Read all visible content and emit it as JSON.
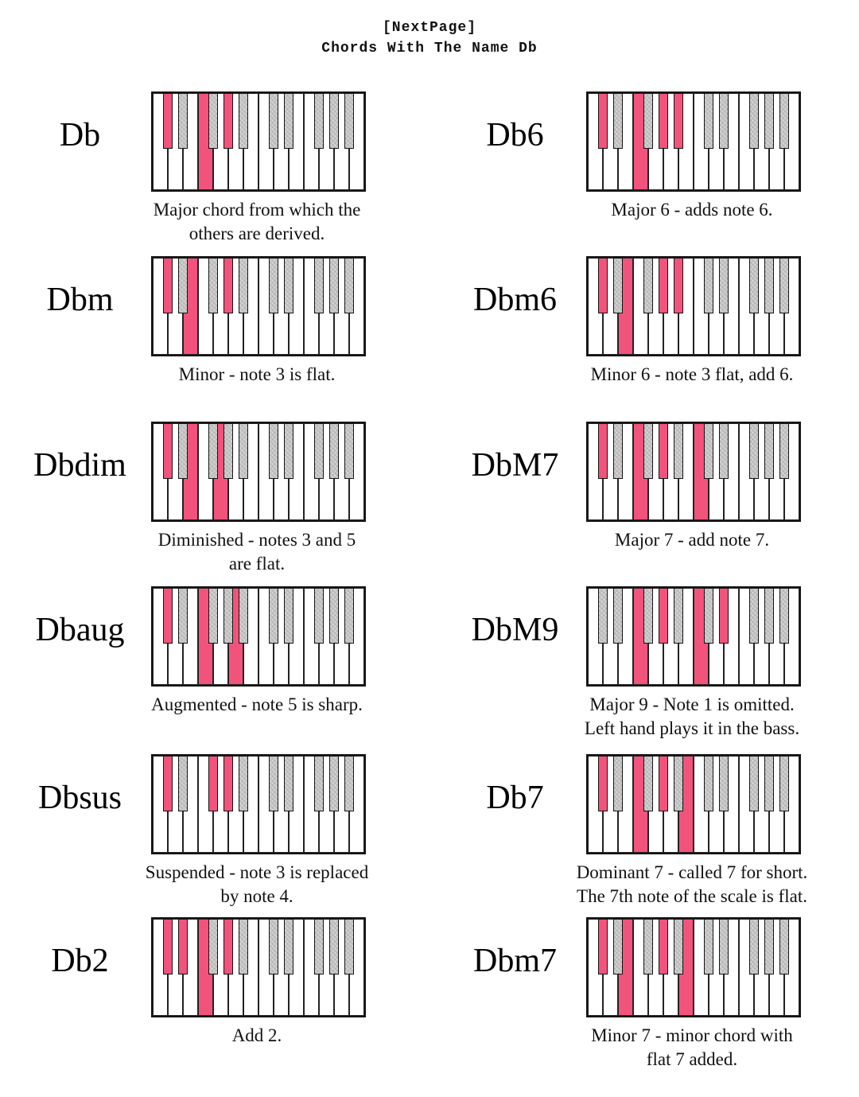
{
  "title": {
    "text": "[NextPage]\nChords With The Name Db"
  },
  "colors": {
    "highlight_pink": "#f2537b",
    "black_key_gray": "#c8c8c8",
    "key_outline": "#141414"
  },
  "keyboard_layout": {
    "white_notes": [
      "C1",
      "D1",
      "E1",
      "F1",
      "G1",
      "A1",
      "B1",
      "C2",
      "D2",
      "E2",
      "F2",
      "G2",
      "A2",
      "B2"
    ],
    "black_notes": [
      "Db1",
      "Eb1",
      "Gb1",
      "Ab1",
      "Bb1",
      "Db2",
      "Eb2",
      "Gb2",
      "Ab2",
      "Bb2"
    ],
    "black_positions": [
      1,
      2,
      4,
      5,
      6,
      8,
      9,
      11,
      12,
      13
    ],
    "white_key_width": 19,
    "black_key_width": 12
  },
  "chords": [
    {
      "name": "Db",
      "caption": "Major chord from which the\nothers are derived.",
      "notes": [
        "Db",
        "F",
        "Ab"
      ],
      "white_keys": [
        3
      ],
      "black_keys": [
        0,
        3
      ]
    },
    {
      "name": "Db6",
      "caption": "Major 6 - adds note 6.",
      "notes": [
        "Db",
        "F",
        "Ab",
        "Bb"
      ],
      "white_keys": [
        3
      ],
      "black_keys": [
        0,
        3,
        4
      ]
    },
    {
      "name": "Dbm",
      "caption": "Minor - note 3 is flat.",
      "notes": [
        "Db",
        "Fb",
        "Ab"
      ],
      "white_keys": [
        2
      ],
      "black_keys": [
        0,
        3
      ]
    },
    {
      "name": "Dbm6",
      "caption": "Minor 6 - note 3 flat, add 6.",
      "notes": [
        "Db",
        "Fb",
        "Ab",
        "Bb"
      ],
      "white_keys": [
        2
      ],
      "black_keys": [
        0,
        3,
        4
      ]
    },
    {
      "name": "Dbdim",
      "caption": "Diminished - notes 3 and 5\nare flat.",
      "notes": [
        "Db",
        "Fb",
        "Abb"
      ],
      "white_keys": [
        2,
        4
      ],
      "black_keys": [
        0
      ]
    },
    {
      "name": "DbM7",
      "caption": "Major 7 - add note 7.",
      "notes": [
        "Db",
        "F",
        "Ab",
        "C"
      ],
      "white_keys": [
        3,
        7
      ],
      "black_keys": [
        0,
        3
      ]
    },
    {
      "name": "Dbaug",
      "caption": "Augmented - note 5 is sharp.",
      "notes": [
        "Db",
        "F",
        "A"
      ],
      "white_keys": [
        3,
        5
      ],
      "black_keys": [
        0
      ]
    },
    {
      "name": "DbM9",
      "caption": "Major 9 - Note 1 is omitted.\nLeft hand plays it in the bass.",
      "notes": [
        "F",
        "Ab",
        "C",
        "Eb"
      ],
      "white_keys": [
        3,
        7
      ],
      "black_keys": [
        3,
        6
      ]
    },
    {
      "name": "Dbsus",
      "caption": "Suspended - note 3 is replaced\nby note 4.",
      "notes": [
        "Db",
        "Gb",
        "Ab"
      ],
      "white_keys": [],
      "black_keys": [
        0,
        2,
        3
      ]
    },
    {
      "name": "Db7",
      "caption": "Dominant 7 - called 7 for short.\nThe 7th note of the scale is flat.",
      "notes": [
        "Db",
        "F",
        "Ab",
        "Cb"
      ],
      "white_keys": [
        3,
        6
      ],
      "black_keys": [
        0,
        3
      ]
    },
    {
      "name": "Db2",
      "caption": "Add 2.",
      "notes": [
        "Db",
        "Eb",
        "F",
        "Ab"
      ],
      "white_keys": [
        3
      ],
      "black_keys": [
        0,
        1,
        3
      ]
    },
    {
      "name": "Dbm7",
      "caption": "Minor 7 - minor chord with\nflat 7 added.",
      "notes": [
        "Db",
        "Fb",
        "Ab",
        "Cb"
      ],
      "white_keys": [
        2,
        6
      ],
      "black_keys": [
        0,
        3
      ]
    }
  ]
}
